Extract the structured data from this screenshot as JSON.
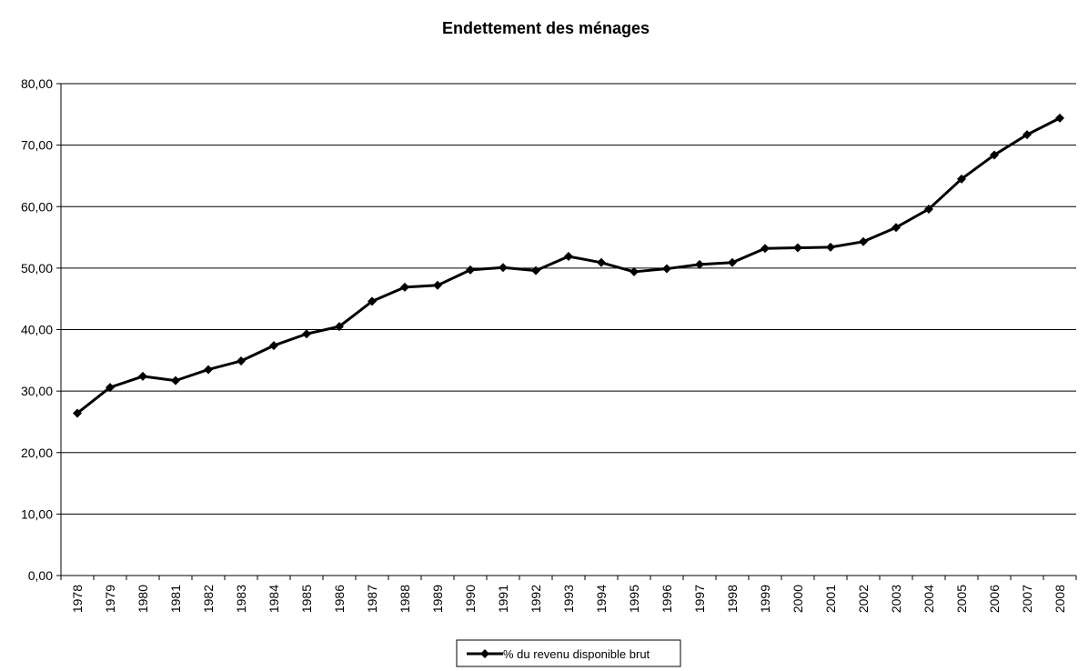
{
  "chart_data": {
    "type": "line",
    "title": "Endettement des ménages",
    "xlabel": "",
    "ylabel": "",
    "categories": [
      "1978",
      "1979",
      "1980",
      "1981",
      "1982",
      "1983",
      "1984",
      "1985",
      "1986",
      "1987",
      "1988",
      "1989",
      "1990",
      "1991",
      "1992",
      "1993",
      "1994",
      "1995",
      "1996",
      "1997",
      "1998",
      "1999",
      "2000",
      "2001",
      "2002",
      "2003",
      "2004",
      "2005",
      "2006",
      "2007",
      "2008"
    ],
    "series": [
      {
        "name": "% du revenu disponible brut",
        "values": [
          26.4,
          30.6,
          32.4,
          31.7,
          33.5,
          34.9,
          37.4,
          39.3,
          40.5,
          44.6,
          46.9,
          47.2,
          49.7,
          50.1,
          49.6,
          51.9,
          50.9,
          49.4,
          49.9,
          50.6,
          50.9,
          53.2,
          53.3,
          53.4,
          54.3,
          56.6,
          59.6,
          64.5,
          68.4,
          71.7,
          74.4
        ]
      }
    ],
    "ylim": [
      0,
      80
    ],
    "yticks": [
      "0,00",
      "10,00",
      "20,00",
      "30,00",
      "40,00",
      "50,00",
      "60,00",
      "70,00",
      "80,00"
    ],
    "grid": true,
    "legend_position": "bottom-center",
    "colors": {
      "line": "#000000",
      "grid": "#000000",
      "background": "#ffffff"
    }
  }
}
